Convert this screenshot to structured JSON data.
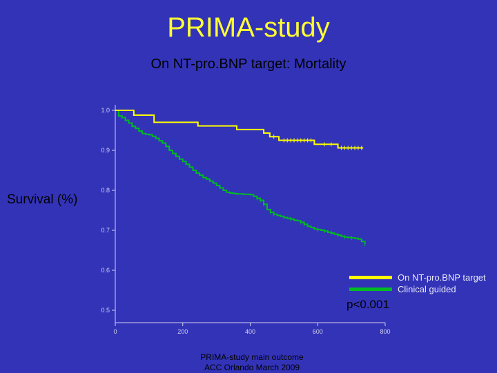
{
  "title": "PRIMA-study",
  "subtitle": "On NT-pro.BNP target: Mortality",
  "footer": {
    "line1": "PRIMA-study main outcome",
    "line2": "ACC Orlando March 2009"
  },
  "p_value": "p<0.001",
  "chart_data": {
    "type": "line",
    "title": "",
    "xlabel": "",
    "ylabel": "Survival (%)",
    "xlim": [
      0,
      800
    ],
    "ylim": [
      0.5,
      1.0
    ],
    "x_ticks": [
      "0",
      "200",
      "400",
      "600",
      "800"
    ],
    "y_ticks": [
      "1.0",
      "0.9",
      "0.8",
      "0.7",
      "0.6",
      "0.5"
    ],
    "grid": false,
    "legend_position": "bottom-right",
    "series": [
      {
        "name": "On NT-pro.BNP target",
        "color": "#ffff00",
        "x": [
          0,
          55,
          55,
          115,
          115,
          245,
          245,
          360,
          360,
          440,
          440,
          458,
          458,
          485,
          485,
          590,
          590,
          660,
          660,
          735
        ],
        "y": [
          1.0,
          1.0,
          0.988,
          0.988,
          0.97,
          0.97,
          0.961,
          0.961,
          0.952,
          0.952,
          0.943,
          0.943,
          0.934,
          0.934,
          0.925,
          0.925,
          0.915,
          0.915,
          0.906,
          0.906
        ],
        "censor_x": [
          470,
          500,
          510,
          520,
          530,
          540,
          550,
          560,
          570,
          580,
          620,
          640,
          670,
          680,
          690,
          700,
          710,
          720,
          730
        ]
      },
      {
        "name": "Clinical guided",
        "color": "#00bb22",
        "x": [
          0,
          10,
          20,
          30,
          40,
          50,
          60,
          70,
          80,
          90,
          100,
          110,
          120,
          130,
          140,
          150,
          160,
          170,
          180,
          190,
          200,
          210,
          220,
          230,
          240,
          250,
          260,
          270,
          280,
          290,
          300,
          310,
          320,
          330,
          340,
          350,
          360,
          370,
          380,
          390,
          400,
          410,
          420,
          430,
          440,
          450,
          460,
          470,
          480,
          490,
          500,
          510,
          520,
          530,
          540,
          550,
          560,
          570,
          580,
          590,
          600,
          610,
          620,
          630,
          640,
          650,
          660,
          670,
          680,
          690,
          700,
          710,
          720,
          730,
          740
        ],
        "y": [
          1.0,
          0.986,
          0.982,
          0.975,
          0.968,
          0.96,
          0.955,
          0.948,
          0.942,
          0.94,
          0.939,
          0.935,
          0.93,
          0.924,
          0.918,
          0.91,
          0.9,
          0.892,
          0.885,
          0.878,
          0.872,
          0.865,
          0.858,
          0.85,
          0.843,
          0.838,
          0.832,
          0.828,
          0.823,
          0.818,
          0.812,
          0.806,
          0.8,
          0.795,
          0.793,
          0.792,
          0.791,
          0.791,
          0.79,
          0.79,
          0.789,
          0.785,
          0.78,
          0.775,
          0.765,
          0.752,
          0.745,
          0.74,
          0.737,
          0.735,
          0.732,
          0.73,
          0.728,
          0.725,
          0.724,
          0.72,
          0.715,
          0.71,
          0.707,
          0.703,
          0.702,
          0.7,
          0.698,
          0.695,
          0.693,
          0.69,
          0.688,
          0.685,
          0.683,
          0.682,
          0.681,
          0.68,
          0.678,
          0.672,
          0.665
        ],
        "censor_x": [
          420,
          430,
          440,
          460,
          470,
          520,
          550,
          560,
          600,
          620,
          640,
          660,
          680,
          700,
          740
        ]
      }
    ]
  }
}
